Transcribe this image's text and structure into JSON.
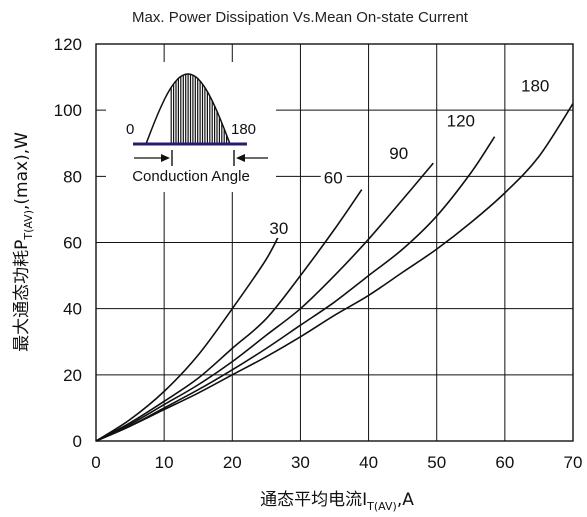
{
  "chart_data": {
    "type": "line",
    "title": "Max. Power Dissipation Vs.Mean On-state Current",
    "xlabel": {
      "main": "通态平均电流I",
      "sub": "T(AV)",
      "tail": ",A"
    },
    "ylabel": {
      "main": "最大通态功耗P",
      "sub": "T(AV)",
      "tail": ",(max),W"
    },
    "xlim": [
      0,
      70
    ],
    "ylim": [
      0,
      120
    ],
    "x_ticks": [
      "0",
      "10",
      "20",
      "30",
      "40",
      "50",
      "60",
      "70"
    ],
    "y_ticks": [
      "0",
      "20",
      "40",
      "60",
      "80",
      "100",
      "120"
    ],
    "grid": true,
    "series": [
      {
        "name": "30",
        "x": [
          0,
          5,
          10,
          15,
          20,
          25,
          27.5
        ],
        "y": [
          0,
          6.5,
          15,
          26,
          40,
          55,
          65
        ]
      },
      {
        "name": "60",
        "x": [
          0,
          5,
          10,
          15,
          20,
          25,
          30,
          35,
          39
        ],
        "y": [
          0,
          5.5,
          12,
          19,
          28,
          37,
          50,
          64,
          76
        ]
      },
      {
        "name": "90",
        "x": [
          0,
          5,
          10,
          15,
          20,
          25,
          30,
          35,
          40,
          45,
          49.5
        ],
        "y": [
          0,
          5,
          11,
          17,
          24,
          32,
          40,
          50,
          61,
          73,
          84
        ]
      },
      {
        "name": "120",
        "x": [
          0,
          5,
          10,
          15,
          20,
          25,
          30,
          35,
          40,
          45,
          50,
          55,
          58.5
        ],
        "y": [
          0,
          4.5,
          10,
          15.5,
          21.5,
          28,
          35,
          42,
          50,
          58,
          68,
          81,
          92
        ]
      },
      {
        "name": "180",
        "x": [
          0,
          5,
          10,
          15,
          20,
          25,
          30,
          35,
          40,
          45,
          50,
          55,
          60,
          65,
          70
        ],
        "y": [
          0,
          4.5,
          9.5,
          14.5,
          20,
          25.5,
          31.5,
          38,
          44,
          51,
          58,
          66,
          75,
          86,
          102
        ]
      }
    ],
    "inset": {
      "caption": "Conduction Angle",
      "left_label": "0",
      "right_label": "180"
    }
  }
}
